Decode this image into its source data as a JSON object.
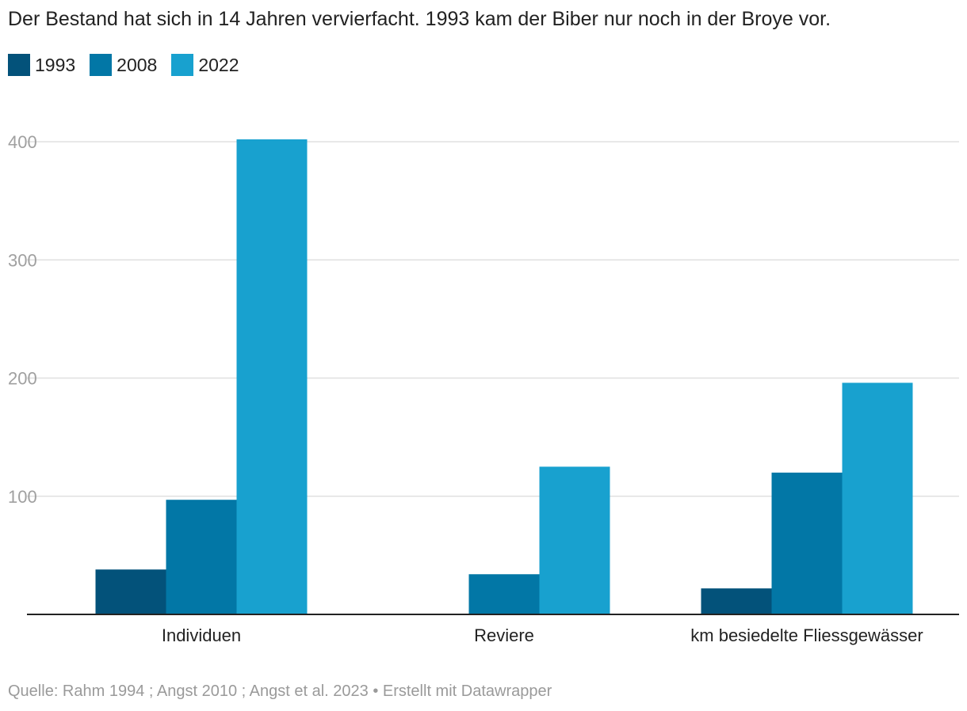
{
  "subtitle": "Der Bestand hat sich in 14 Jahren vervierfacht. 1993 kam der Biber nur noch in der Broye vor.",
  "legend": [
    {
      "label": "1993",
      "color": "#03527a"
    },
    {
      "label": "2008",
      "color": "#0277a6"
    },
    {
      "label": "2022",
      "color": "#18a1cf"
    }
  ],
  "chart_data": {
    "type": "bar",
    "title": "Der Bestand hat sich in 14 Jahren vervierfacht. 1993 kam der Biber nur noch in der Broye vor.",
    "xlabel": "",
    "ylabel": "",
    "categories": [
      "Individuen",
      "Reviere",
      "km besiedelte Fliessgewässer"
    ],
    "series": [
      {
        "name": "1993",
        "color": "#03527a",
        "values": [
          38,
          0,
          22
        ]
      },
      {
        "name": "2008",
        "color": "#0277a6",
        "values": [
          97,
          34,
          120
        ]
      },
      {
        "name": "2022",
        "color": "#18a1cf",
        "values": [
          402,
          125,
          196
        ]
      }
    ],
    "ylim": [
      0,
      400
    ],
    "yticks": [
      100,
      200,
      300,
      400
    ],
    "grid": true,
    "legend_position": "top-left"
  },
  "source": "Quelle: Rahm 1994 ; Angst 2010 ; Angst et al. 2023 • Erstellt mit Datawrapper"
}
